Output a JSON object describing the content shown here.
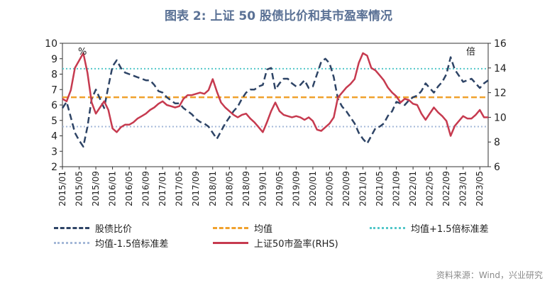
{
  "title": "图表 2:  上证 50 股债比价和其市盈率情况",
  "source": "资料来源：Wind，兴业研究",
  "chart_data": {
    "type": "line",
    "left_axis": {
      "unit": "%",
      "min": 2,
      "max": 10,
      "ticks": [
        2,
        3,
        4,
        5,
        6,
        7,
        8,
        9,
        10
      ]
    },
    "right_axis": {
      "unit": "倍",
      "min": 6,
      "max": 16,
      "ticks": [
        6,
        8,
        10,
        12,
        14,
        16
      ]
    },
    "x_ticks": [
      "2015/01",
      "2015/05",
      "2015/09",
      "2016/01",
      "2016/05",
      "2016/09",
      "2017/01",
      "2017/05",
      "2017/09",
      "2018/01",
      "2018/05",
      "2018/09",
      "2019/01",
      "2019/05",
      "2019/09",
      "2020/01",
      "2020/05",
      "2020/09",
      "2021/01",
      "2021/05",
      "2021/09",
      "2022/01",
      "2022/05",
      "2022/09",
      "2023/01",
      "2023/05"
    ],
    "x_start": "2015/01",
    "x_end": "2023/07",
    "series": [
      {
        "name": "股债比价",
        "axis": "left",
        "style": "dash",
        "color": "#2e4466",
        "points": [
          [
            "2015/01",
            5.8
          ],
          [
            "2015/02",
            6.2
          ],
          [
            "2015/03",
            5.2
          ],
          [
            "2015/04",
            4.2
          ],
          [
            "2015/05",
            3.7
          ],
          [
            "2015/06",
            3.3
          ],
          [
            "2015/07",
            4.6
          ],
          [
            "2015/08",
            6.4
          ],
          [
            "2015/09",
            7.0
          ],
          [
            "2015/10",
            6.4
          ],
          [
            "2015/11",
            5.8
          ],
          [
            "2015/12",
            7.2
          ],
          [
            "2016/01",
            8.5
          ],
          [
            "2016/02",
            8.9
          ],
          [
            "2016/03",
            8.4
          ],
          [
            "2016/04",
            8.1
          ],
          [
            "2016/05",
            8.0
          ],
          [
            "2016/06",
            7.9
          ],
          [
            "2016/07",
            7.8
          ],
          [
            "2016/08",
            7.7
          ],
          [
            "2016/09",
            7.6
          ],
          [
            "2016/10",
            7.6
          ],
          [
            "2016/11",
            7.3
          ],
          [
            "2016/12",
            6.9
          ],
          [
            "2017/01",
            6.8
          ],
          [
            "2017/02",
            6.5
          ],
          [
            "2017/03",
            6.3
          ],
          [
            "2017/04",
            6.1
          ],
          [
            "2017/05",
            6.1
          ],
          [
            "2017/06",
            5.8
          ],
          [
            "2017/07",
            5.6
          ],
          [
            "2017/08",
            5.4
          ],
          [
            "2017/09",
            5.1
          ],
          [
            "2017/10",
            4.9
          ],
          [
            "2017/11",
            4.8
          ],
          [
            "2017/12",
            4.6
          ],
          [
            "2018/01",
            4.2
          ],
          [
            "2018/02",
            3.8
          ],
          [
            "2018/03",
            4.3
          ],
          [
            "2018/04",
            4.8
          ],
          [
            "2018/05",
            5.2
          ],
          [
            "2018/06",
            5.6
          ],
          [
            "2018/07",
            5.9
          ],
          [
            "2018/08",
            6.4
          ],
          [
            "2018/09",
            6.8
          ],
          [
            "2018/10",
            7.0
          ],
          [
            "2018/11",
            7.0
          ],
          [
            "2018/12",
            7.2
          ],
          [
            "2019/01",
            7.3
          ],
          [
            "2019/02",
            8.3
          ],
          [
            "2019/03",
            8.4
          ],
          [
            "2019/04",
            7.0
          ],
          [
            "2019/05",
            7.4
          ],
          [
            "2019/06",
            7.7
          ],
          [
            "2019/07",
            7.7
          ],
          [
            "2019/08",
            7.4
          ],
          [
            "2019/09",
            7.2
          ],
          [
            "2019/10",
            7.3
          ],
          [
            "2019/11",
            7.6
          ],
          [
            "2019/12",
            7.1
          ],
          [
            "2020/01",
            7.2
          ],
          [
            "2020/02",
            8.0
          ],
          [
            "2020/03",
            8.8
          ],
          [
            "2020/04",
            9.0
          ],
          [
            "2020/05",
            8.7
          ],
          [
            "2020/06",
            7.8
          ],
          [
            "2020/07",
            6.4
          ],
          [
            "2020/08",
            5.9
          ],
          [
            "2020/09",
            5.6
          ],
          [
            "2020/10",
            5.2
          ],
          [
            "2020/11",
            4.8
          ],
          [
            "2020/12",
            4.2
          ],
          [
            "2021/01",
            3.8
          ],
          [
            "2021/02",
            3.5
          ],
          [
            "2021/03",
            4.0
          ],
          [
            "2021/04",
            4.5
          ],
          [
            "2021/05",
            4.6
          ],
          [
            "2021/06",
            4.8
          ],
          [
            "2021/07",
            5.3
          ],
          [
            "2021/08",
            5.6
          ],
          [
            "2021/09",
            6.2
          ],
          [
            "2021/10",
            6.1
          ],
          [
            "2021/11",
            6.0
          ],
          [
            "2021/12",
            6.3
          ],
          [
            "2022/01",
            6.5
          ],
          [
            "2022/02",
            6.6
          ],
          [
            "2022/03",
            6.9
          ],
          [
            "2022/04",
            7.4
          ],
          [
            "2022/05",
            7.1
          ],
          [
            "2022/06",
            6.8
          ],
          [
            "2022/07",
            7.2
          ],
          [
            "2022/08",
            7.5
          ],
          [
            "2022/09",
            8.0
          ],
          [
            "2022/10",
            9.1
          ],
          [
            "2022/11",
            8.3
          ],
          [
            "2022/12",
            7.9
          ],
          [
            "2023/01",
            7.5
          ],
          [
            "2023/02",
            7.6
          ],
          [
            "2023/03",
            7.7
          ],
          [
            "2023/04",
            7.4
          ],
          [
            "2023/05",
            7.1
          ],
          [
            "2023/06",
            7.4
          ],
          [
            "2023/07",
            7.6
          ]
        ]
      },
      {
        "name": "均值",
        "axis": "left",
        "style": "dash",
        "color": "#f0a12c",
        "value": 6.5
      },
      {
        "name": "均值+1.5倍标准差",
        "axis": "left",
        "style": "dot",
        "color": "#54c7c9",
        "value": 8.35
      },
      {
        "name": "均值-1.5倍标准差",
        "axis": "left",
        "style": "dot",
        "color": "#a4b8d8",
        "value": 4.6
      },
      {
        "name": "上证50市盈率(RHS)",
        "axis": "right",
        "style": "solid",
        "color": "#c63a4f",
        "points": [
          [
            "2015/01",
            11.5
          ],
          [
            "2015/02",
            11.3
          ],
          [
            "2015/03",
            12.2
          ],
          [
            "2015/04",
            14.0
          ],
          [
            "2015/05",
            14.6
          ],
          [
            "2015/06",
            15.2
          ],
          [
            "2015/07",
            13.6
          ],
          [
            "2015/08",
            11.2
          ],
          [
            "2015/09",
            10.3
          ],
          [
            "2015/10",
            10.8
          ],
          [
            "2015/11",
            11.3
          ],
          [
            "2015/12",
            10.6
          ],
          [
            "2016/01",
            9.1
          ],
          [
            "2016/02",
            8.8
          ],
          [
            "2016/03",
            9.2
          ],
          [
            "2016/04",
            9.4
          ],
          [
            "2016/05",
            9.4
          ],
          [
            "2016/06",
            9.6
          ],
          [
            "2016/07",
            9.9
          ],
          [
            "2016/08",
            10.1
          ],
          [
            "2016/09",
            10.3
          ],
          [
            "2016/10",
            10.6
          ],
          [
            "2016/11",
            10.8
          ],
          [
            "2016/12",
            11.1
          ],
          [
            "2017/01",
            11.3
          ],
          [
            "2017/02",
            11.0
          ],
          [
            "2017/03",
            10.9
          ],
          [
            "2017/04",
            10.8
          ],
          [
            "2017/05",
            10.9
          ],
          [
            "2017/06",
            11.5
          ],
          [
            "2017/07",
            11.8
          ],
          [
            "2017/08",
            11.8
          ],
          [
            "2017/09",
            11.9
          ],
          [
            "2017/10",
            12.0
          ],
          [
            "2017/11",
            11.9
          ],
          [
            "2017/12",
            12.2
          ],
          [
            "2018/01",
            13.1
          ],
          [
            "2018/02",
            12.1
          ],
          [
            "2018/03",
            11.2
          ],
          [
            "2018/04",
            10.8
          ],
          [
            "2018/05",
            10.5
          ],
          [
            "2018/06",
            10.2
          ],
          [
            "2018/07",
            10.0
          ],
          [
            "2018/08",
            10.2
          ],
          [
            "2018/09",
            10.3
          ],
          [
            "2018/10",
            9.9
          ],
          [
            "2018/11",
            9.6
          ],
          [
            "2018/12",
            9.2
          ],
          [
            "2019/01",
            8.8
          ],
          [
            "2019/02",
            9.6
          ],
          [
            "2019/03",
            10.5
          ],
          [
            "2019/04",
            11.2
          ],
          [
            "2019/05",
            10.5
          ],
          [
            "2019/06",
            10.2
          ],
          [
            "2019/07",
            10.1
          ],
          [
            "2019/08",
            10.0
          ],
          [
            "2019/09",
            10.1
          ],
          [
            "2019/10",
            10.0
          ],
          [
            "2019/11",
            9.8
          ],
          [
            "2019/12",
            10.0
          ],
          [
            "2020/01",
            9.7
          ],
          [
            "2020/02",
            9.0
          ],
          [
            "2020/03",
            8.9
          ],
          [
            "2020/04",
            9.2
          ],
          [
            "2020/05",
            9.5
          ],
          [
            "2020/06",
            10.0
          ],
          [
            "2020/07",
            11.6
          ],
          [
            "2020/08",
            12.0
          ],
          [
            "2020/09",
            12.4
          ],
          [
            "2020/10",
            12.7
          ],
          [
            "2020/11",
            13.1
          ],
          [
            "2020/12",
            14.4
          ],
          [
            "2021/01",
            15.2
          ],
          [
            "2021/02",
            15.0
          ],
          [
            "2021/03",
            14.0
          ],
          [
            "2021/04",
            13.8
          ],
          [
            "2021/05",
            13.4
          ],
          [
            "2021/06",
            13.0
          ],
          [
            "2021/07",
            12.4
          ],
          [
            "2021/08",
            12.0
          ],
          [
            "2021/09",
            11.7
          ],
          [
            "2021/10",
            11.2
          ],
          [
            "2021/11",
            11.5
          ],
          [
            "2021/12",
            11.4
          ],
          [
            "2022/01",
            11.1
          ],
          [
            "2022/02",
            11.0
          ],
          [
            "2022/03",
            10.3
          ],
          [
            "2022/04",
            9.8
          ],
          [
            "2022/05",
            10.3
          ],
          [
            "2022/06",
            10.8
          ],
          [
            "2022/07",
            10.4
          ],
          [
            "2022/08",
            10.1
          ],
          [
            "2022/09",
            9.7
          ],
          [
            "2022/10",
            8.5
          ],
          [
            "2022/11",
            9.3
          ],
          [
            "2022/12",
            9.7
          ],
          [
            "2023/01",
            10.1
          ],
          [
            "2023/02",
            9.9
          ],
          [
            "2023/03",
            9.9
          ],
          [
            "2023/04",
            10.2
          ],
          [
            "2023/05",
            10.6
          ],
          [
            "2023/06",
            10.0
          ],
          [
            "2023/07",
            10.0
          ]
        ]
      }
    ]
  }
}
